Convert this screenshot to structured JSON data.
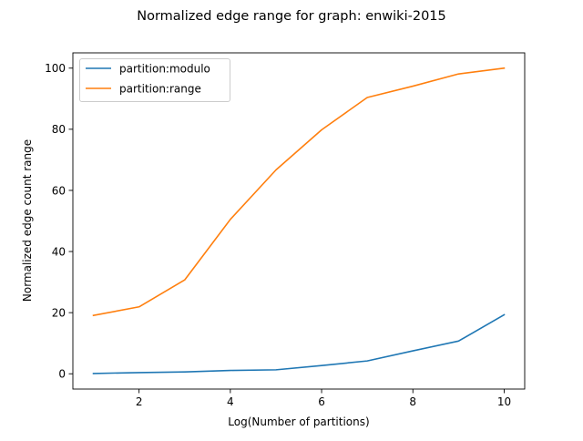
{
  "chart_data": {
    "type": "line",
    "title": "Normalized edge range for graph: enwiki-2015",
    "xlabel": "Log(Number of partitions)",
    "ylabel": "Normalized edge count range",
    "xlim": [
      0.55,
      10.45
    ],
    "ylim": [
      -5,
      105
    ],
    "xticks": [
      2,
      4,
      6,
      8,
      10
    ],
    "xtick_labels": [
      "2",
      "4",
      "6",
      "8",
      "10"
    ],
    "yticks": [
      0,
      20,
      40,
      60,
      80,
      100
    ],
    "ytick_labels": [
      "0",
      "20",
      "40",
      "60",
      "80",
      "100"
    ],
    "grid": false,
    "legend_position": "upper-left",
    "x": [
      1,
      2,
      3,
      4,
      5,
      6,
      7,
      8,
      9,
      10
    ],
    "series": [
      {
        "name": "partition:modulo",
        "color": "#1f77b4",
        "values": [
          0.1,
          0.4,
          0.6,
          1.1,
          1.3,
          2.7,
          4.2,
          7.5,
          10.7,
          19.3
        ]
      },
      {
        "name": "partition:range",
        "color": "#ff7f0e",
        "values": [
          19.1,
          21.9,
          30.7,
          50.5,
          66.7,
          79.8,
          90.4,
          94.1,
          98.1,
          100.0
        ]
      }
    ]
  }
}
